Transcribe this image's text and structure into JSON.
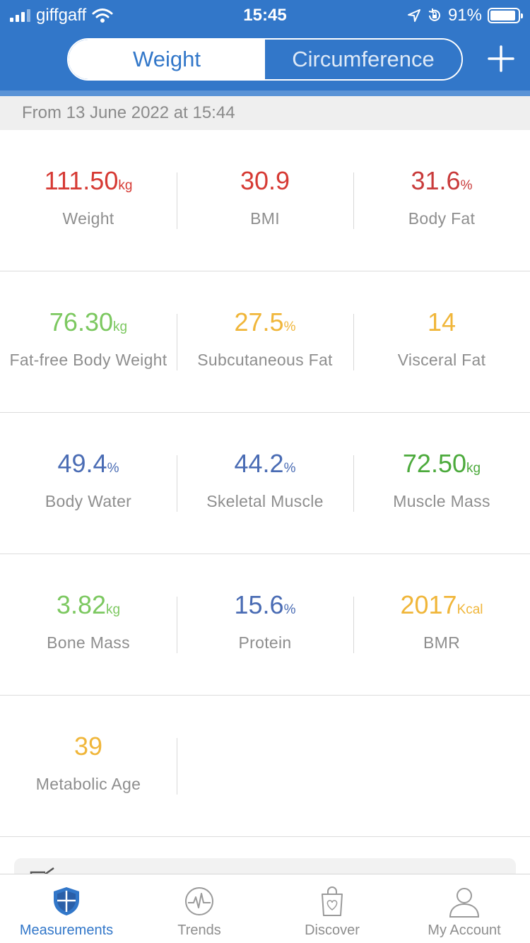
{
  "status_bar": {
    "carrier": "giffgaff",
    "time": "15:45",
    "battery_percent": "91%",
    "battery_level": 0.91
  },
  "header": {
    "tabs": [
      {
        "label": "Weight",
        "active": true
      },
      {
        "label": "Circumference",
        "active": false
      }
    ],
    "add_icon": "plus-icon",
    "color": "#3277c9"
  },
  "date_line": "From 13 June 2022 at 15:44",
  "colors": {
    "red": "#d63a34",
    "green": "#78c85a",
    "green_dark": "#4caa3c",
    "blue": "#4a6cb4",
    "yellow": "#f0b63a"
  },
  "metrics": [
    [
      {
        "value": "111.50",
        "unit": "kg",
        "label": "Weight",
        "color": "#d63a34"
      },
      {
        "value": "30.9",
        "unit": "",
        "label": "BMI",
        "color": "#d63a34"
      },
      {
        "value": "31.6",
        "unit": "%",
        "label": "Body Fat",
        "color": "#c93b3b"
      }
    ],
    [
      {
        "value": "76.30",
        "unit": "kg",
        "label": "Fat-free Body Weight",
        "color": "#7cc860"
      },
      {
        "value": "27.5",
        "unit": "%",
        "label": "Subcutaneous Fat",
        "color": "#f0b63a"
      },
      {
        "value": "14",
        "unit": "",
        "label": "Visceral Fat",
        "color": "#f0b63a"
      }
    ],
    [
      {
        "value": "49.4",
        "unit": "%",
        "label": "Body Water",
        "color": "#4a6cb4"
      },
      {
        "value": "44.2",
        "unit": "%",
        "label": "Skeletal Muscle",
        "color": "#4a6cb4"
      },
      {
        "value": "72.50",
        "unit": "kg",
        "label": "Muscle Mass",
        "color": "#4caa3c"
      }
    ],
    [
      {
        "value": "3.82",
        "unit": "kg",
        "label": "Bone Mass",
        "color": "#7cc860"
      },
      {
        "value": "15.6",
        "unit": "%",
        "label": "Protein",
        "color": "#4a6cb4"
      },
      {
        "value": "2017",
        "unit": "Kcal",
        "label": "BMR",
        "color": "#f0b63a"
      }
    ],
    [
      {
        "value": "39",
        "unit": "",
        "label": "Metabolic Age",
        "color": "#f0b63a"
      }
    ]
  ],
  "tabbar": [
    {
      "label": "Measurements",
      "icon": "shield-icon",
      "active": true
    },
    {
      "label": "Trends",
      "icon": "heartbeat-icon",
      "active": false
    },
    {
      "label": "Discover",
      "icon": "shopping-bag-icon",
      "active": false
    },
    {
      "label": "My Account",
      "icon": "person-icon",
      "active": false
    }
  ]
}
